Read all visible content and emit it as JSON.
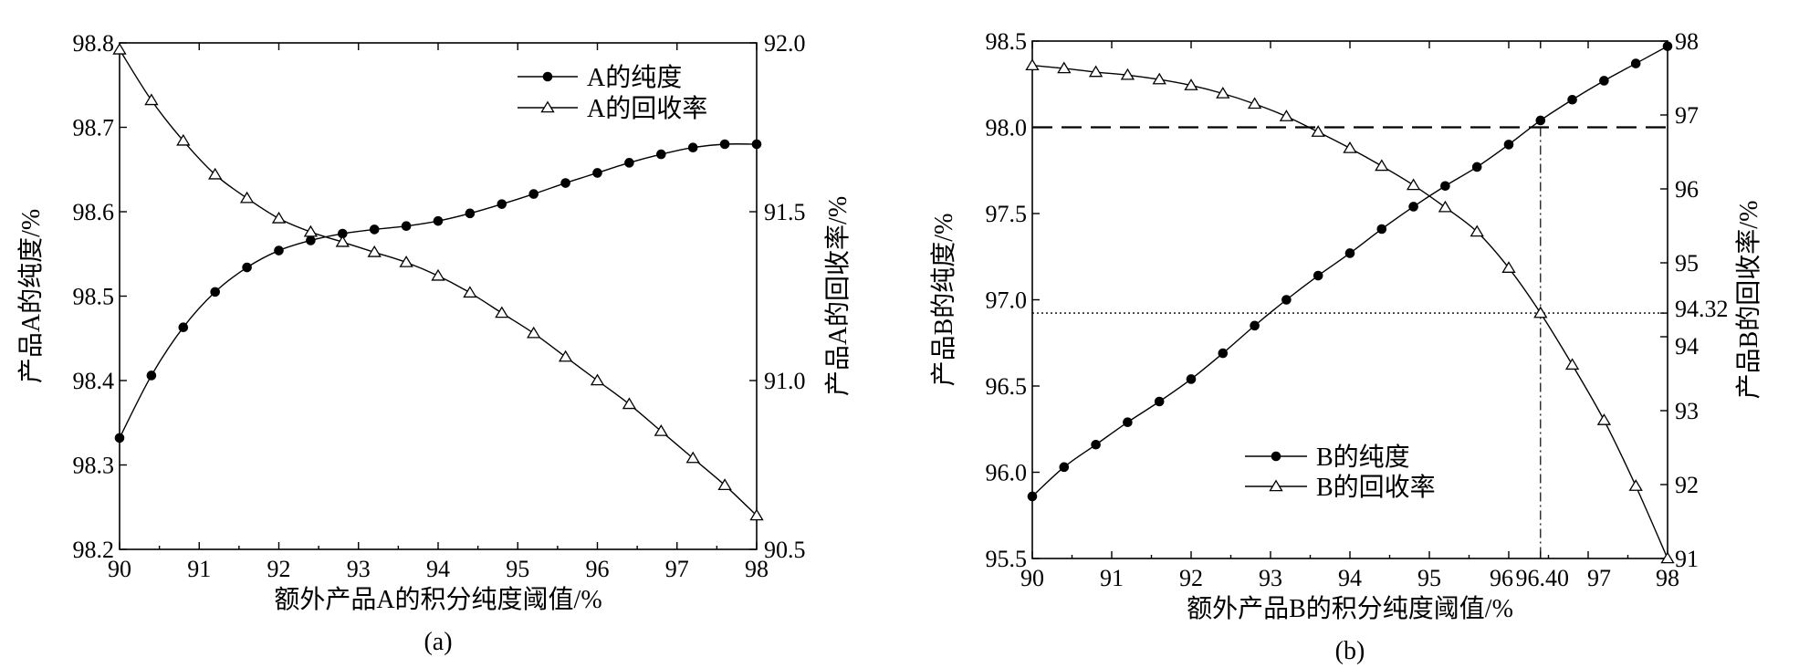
{
  "chart_data": [
    {
      "id": "a",
      "type": "line",
      "caption": "(a)",
      "xlabel": "额外产品A的积分纯度阈值/%",
      "ylabel_left": "产品A的纯度/%",
      "ylabel_right": "产品A的回收率/%",
      "xlim": [
        90,
        98
      ],
      "ylim_left": [
        98.2,
        98.8
      ],
      "ylim_right": [
        90.5,
        92.0
      ],
      "x_ticks": [
        "90",
        "91",
        "92",
        "93",
        "94",
        "95",
        "96",
        "97",
        "98"
      ],
      "y_ticks_left": [
        "98.2",
        "98.3",
        "98.4",
        "98.5",
        "98.6",
        "98.7",
        "98.8"
      ],
      "y_ticks_right": [
        "90.5",
        "91.0",
        "91.5",
        "92.0"
      ],
      "legend_position": "top-right",
      "series": [
        {
          "name": "A的纯度",
          "axis": "left",
          "marker": "filled-circle",
          "x": [
            90,
            90.4,
            90.8,
            91.2,
            91.6,
            92,
            92.4,
            92.8,
            93.2,
            93.6,
            94,
            94.4,
            94.8,
            95.2,
            95.6,
            96,
            96.4,
            96.8,
            97.2,
            97.6,
            98
          ],
          "y": [
            98.332,
            98.406,
            98.463,
            98.505,
            98.534,
            98.554,
            98.566,
            98.574,
            98.579,
            98.583,
            98.589,
            98.598,
            98.609,
            98.621,
            98.634,
            98.646,
            98.658,
            98.668,
            98.676,
            98.68,
            98.68
          ]
        },
        {
          "name": "A的回收率",
          "axis": "right",
          "marker": "open-triangle",
          "x": [
            90,
            90.4,
            90.8,
            91.2,
            91.6,
            92,
            92.4,
            92.8,
            93.2,
            93.6,
            94,
            94.4,
            94.8,
            95.2,
            95.6,
            96,
            96.4,
            96.8,
            97.2,
            97.6,
            98
          ],
          "y": [
            91.98,
            91.83,
            91.71,
            91.61,
            91.54,
            91.48,
            91.44,
            91.41,
            91.38,
            91.35,
            91.31,
            91.26,
            91.2,
            91.14,
            91.07,
            91,
            90.93,
            90.85,
            90.77,
            90.69,
            90.6
          ]
        }
      ]
    },
    {
      "id": "b",
      "type": "line",
      "caption": "(b)",
      "xlabel": "额外产品B的积分纯度阈值/%",
      "ylabel_left": "产品B的纯度/%",
      "ylabel_right": "产品B的回收率/%",
      "xlim": [
        90,
        98
      ],
      "ylim_left": [
        95.5,
        98.5
      ],
      "ylim_right": [
        91,
        98
      ],
      "x_ticks": [
        "90",
        "91",
        "92",
        "93",
        "94",
        "95",
        "96",
        "96.40",
        "97",
        "98"
      ],
      "y_ticks_left": [
        "95.5",
        "96.0",
        "96.5",
        "97.0",
        "97.5",
        "98.0",
        "98.5"
      ],
      "y_ticks_right": [
        "91",
        "92",
        "93",
        "94",
        "94.32",
        "95",
        "96",
        "97",
        "98"
      ],
      "legend_position": "bottom-left",
      "reference_lines": [
        {
          "type": "horizontal-dashed",
          "axis": "left",
          "value": 98.0
        },
        {
          "type": "horizontal-dotted",
          "axis": "right",
          "value": 94.32
        },
        {
          "type": "vertical-dashdot",
          "value": 96.4
        }
      ],
      "series": [
        {
          "name": "B的纯度",
          "axis": "left",
          "marker": "filled-circle",
          "x": [
            90,
            90.4,
            90.8,
            91.2,
            91.6,
            92,
            92.4,
            92.8,
            93.2,
            93.6,
            94,
            94.4,
            94.8,
            95.2,
            95.6,
            96,
            96.4,
            96.8,
            97.2,
            97.6,
            98
          ],
          "y": [
            95.86,
            96.03,
            96.16,
            96.29,
            96.41,
            96.54,
            96.69,
            96.85,
            97.0,
            97.14,
            97.27,
            97.41,
            97.54,
            97.66,
            97.77,
            97.9,
            98.04,
            98.16,
            98.27,
            98.37,
            98.47
          ]
        },
        {
          "name": "B的回收率",
          "axis": "right",
          "marker": "open-triangle",
          "x": [
            90,
            90.4,
            90.8,
            91.2,
            91.6,
            92,
            92.4,
            92.8,
            93.2,
            93.6,
            94,
            94.4,
            94.8,
            95.2,
            95.6,
            96,
            96.4,
            96.8,
            97.2,
            97.6,
            98
          ],
          "y": [
            97.67,
            97.63,
            97.58,
            97.54,
            97.48,
            97.4,
            97.29,
            97.15,
            96.98,
            96.77,
            96.55,
            96.31,
            96.05,
            95.75,
            95.42,
            94.93,
            94.32,
            93.62,
            92.87,
            91.98,
            91.0
          ]
        }
      ]
    }
  ]
}
